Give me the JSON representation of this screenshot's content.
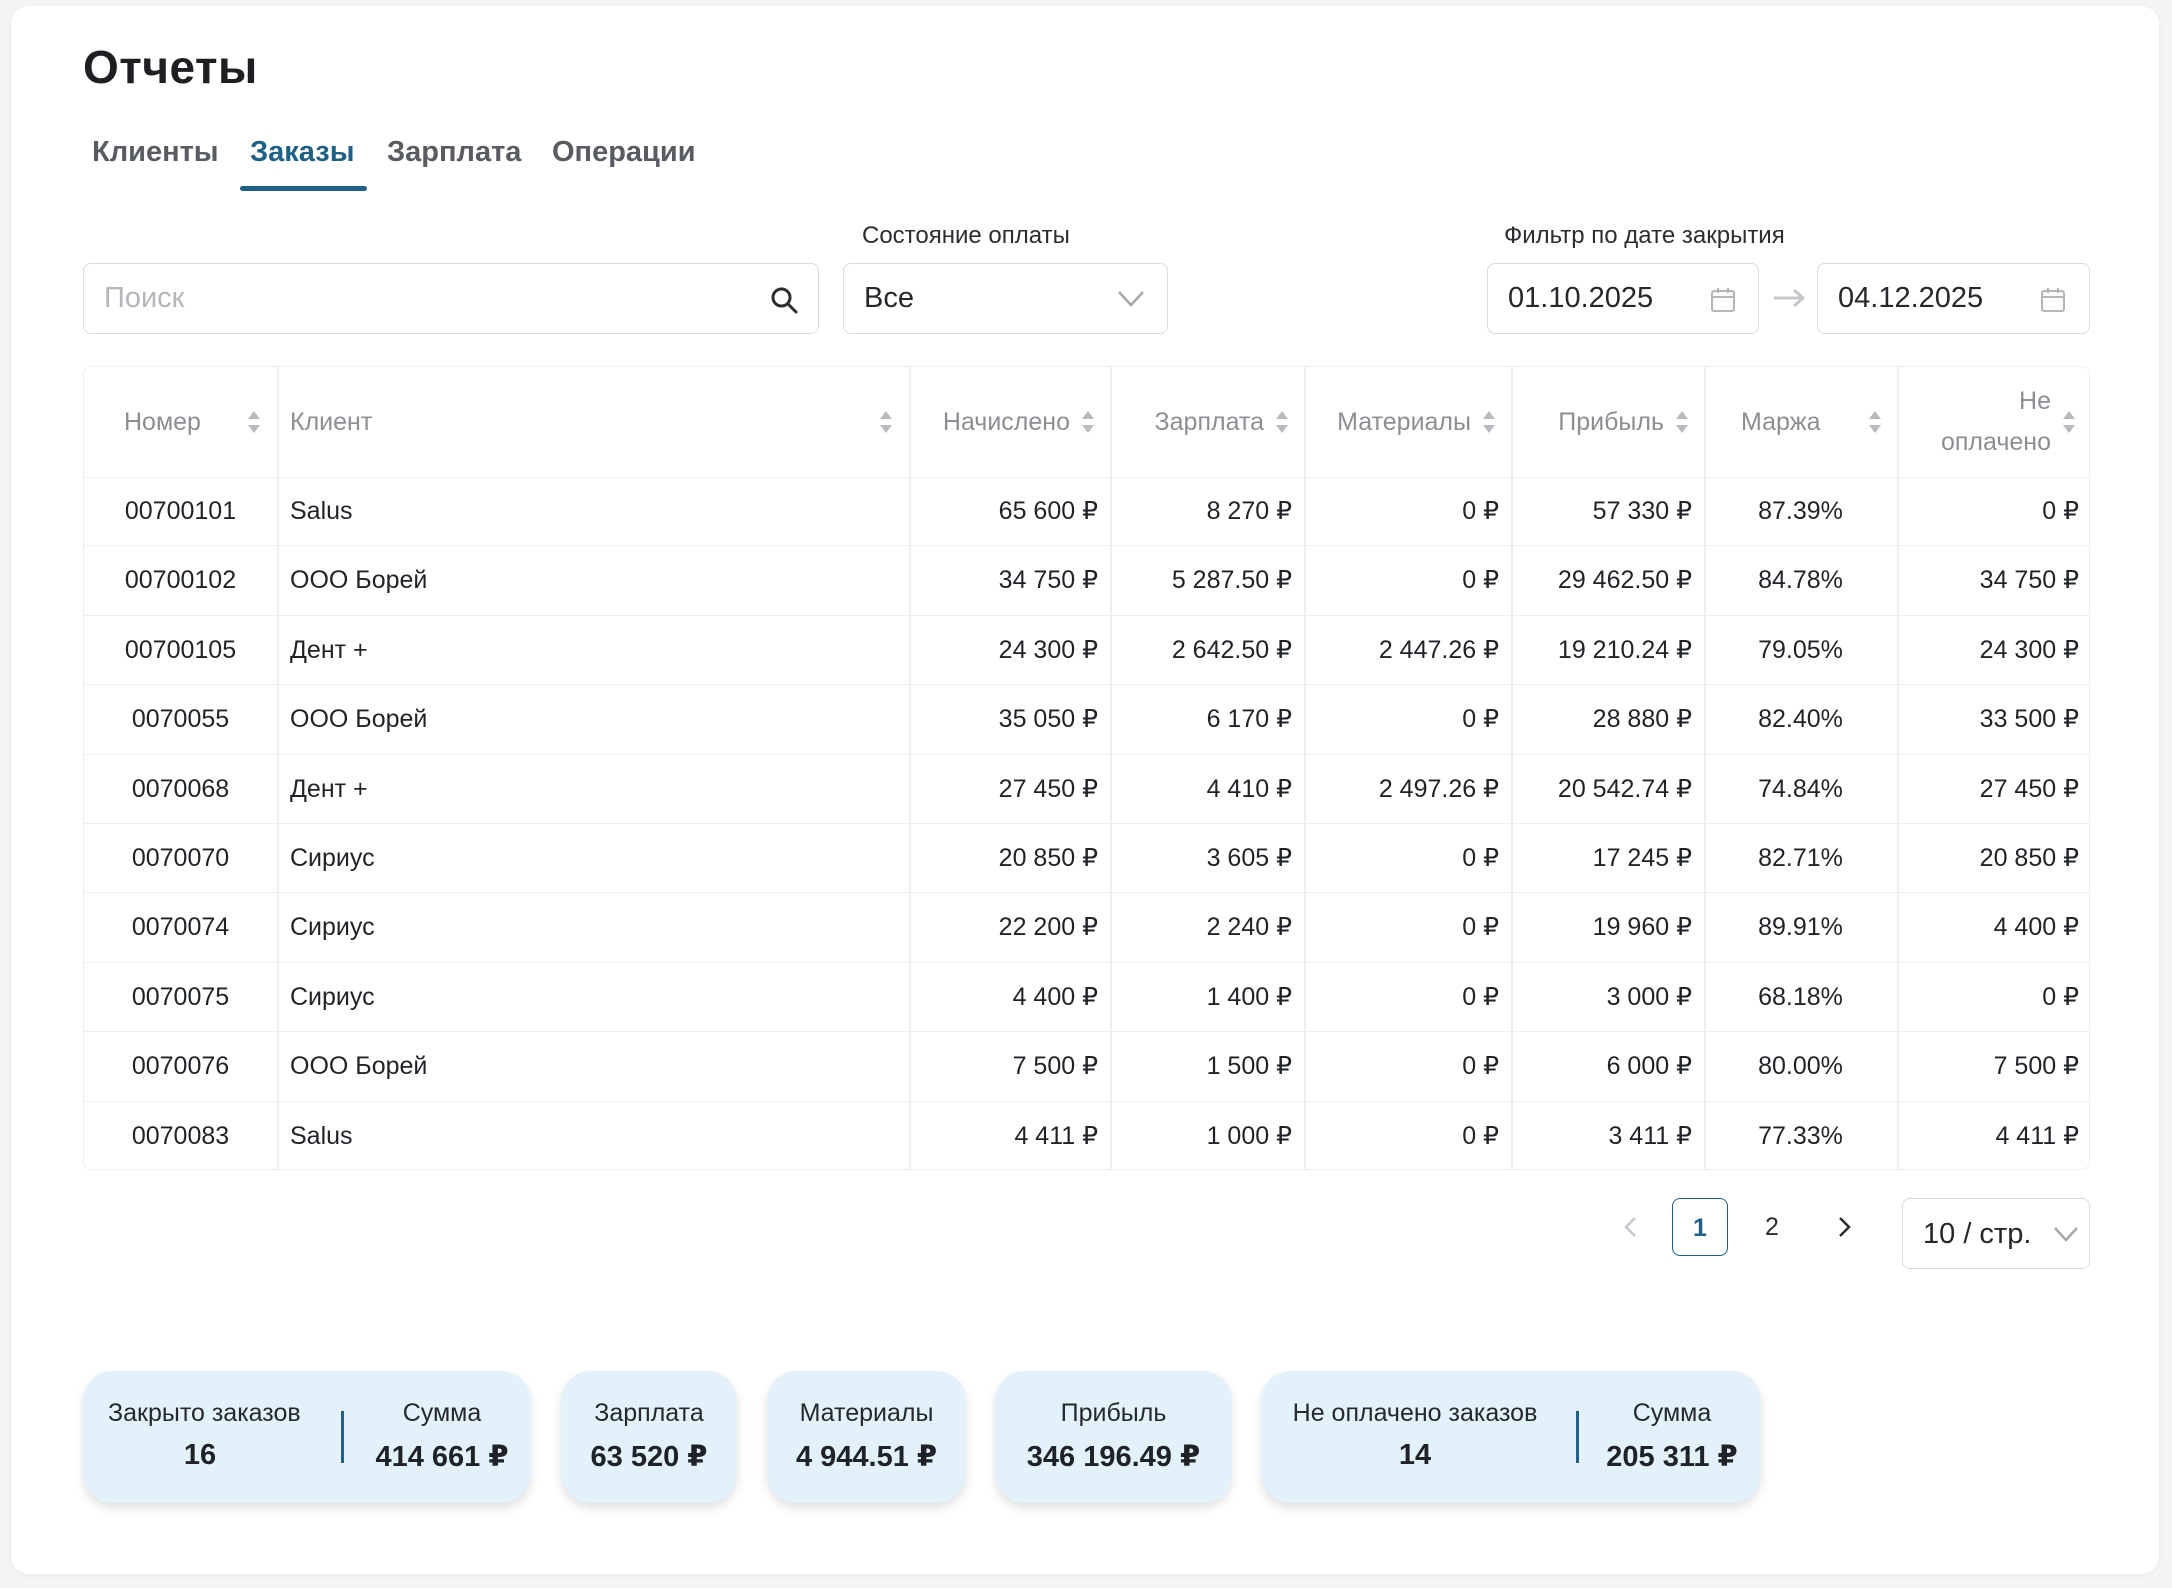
{
  "page": {
    "title": "Отчеты"
  },
  "tabs": [
    {
      "label": "Клиенты",
      "active": false
    },
    {
      "label": "Заказы",
      "active": true
    },
    {
      "label": "Зарплата",
      "active": false
    },
    {
      "label": "Операции",
      "active": false
    }
  ],
  "filters": {
    "search_placeholder": "Поиск",
    "payment_state_label": "Состояние оплаты",
    "payment_state_value": "Все",
    "date_filter_label": "Фильтр по дате закрытия",
    "date_from": "01.10.2025",
    "date_to": "04.12.2025"
  },
  "table": {
    "columns": [
      "Номер",
      "Клиент",
      "Начислено",
      "Зарплата",
      "Материалы",
      "Прибыль",
      "Маржа",
      "Не",
      "оплачено"
    ],
    "rows": [
      [
        "00700101",
        "Salus",
        "65 600 ₽",
        "8 270 ₽",
        "0 ₽",
        "57 330 ₽",
        "87.39%",
        "0 ₽"
      ],
      [
        "00700102",
        "ООО Борей",
        "34 750 ₽",
        "5 287.50 ₽",
        "0 ₽",
        "29 462.50 ₽",
        "84.78%",
        "34 750 ₽"
      ],
      [
        "00700105",
        "Дент +",
        "24 300 ₽",
        "2 642.50 ₽",
        "2 447.26 ₽",
        "19 210.24 ₽",
        "79.05%",
        "24 300 ₽"
      ],
      [
        "0070055",
        "ООО Борей",
        "35 050 ₽",
        "6 170 ₽",
        "0 ₽",
        "28 880 ₽",
        "82.40%",
        "33 500 ₽"
      ],
      [
        "0070068",
        "Дент +",
        "27 450 ₽",
        "4 410 ₽",
        "2 497.26 ₽",
        "20 542.74 ₽",
        "74.84%",
        "27 450 ₽"
      ],
      [
        "0070070",
        "Сириус",
        "20 850 ₽",
        "3 605 ₽",
        "0 ₽",
        "17 245 ₽",
        "82.71%",
        "20 850 ₽"
      ],
      [
        "0070074",
        "Сириус",
        "22 200 ₽",
        "2 240 ₽",
        "0 ₽",
        "19 960 ₽",
        "89.91%",
        "4 400 ₽"
      ],
      [
        "0070075",
        "Сириус",
        "4 400 ₽",
        "1 400 ₽",
        "0 ₽",
        "3 000 ₽",
        "68.18%",
        "0 ₽"
      ],
      [
        "0070076",
        "ООО Борей",
        "7 500 ₽",
        "1 500 ₽",
        "0 ₽",
        "6 000 ₽",
        "80.00%",
        "7 500 ₽"
      ],
      [
        "0070083",
        "Salus",
        "4 411 ₽",
        "1 000 ₽",
        "0 ₽",
        "3 411 ₽",
        "77.33%",
        "4 411 ₽"
      ]
    ]
  },
  "pagination": {
    "pages": [
      "1",
      "2"
    ],
    "current": "1",
    "page_size": "10 / стр."
  },
  "summary": {
    "closed_orders_label": "Закрыто заказов",
    "closed_orders_value": "16",
    "closed_sum_label": "Сумма",
    "closed_sum_value": "414 661 ₽",
    "salary_label": "Зарплата",
    "salary_value": "63 520 ₽",
    "materials_label": "Материалы",
    "materials_value": "4 944.51 ₽",
    "profit_label": "Прибыль",
    "profit_value": "346 196.49 ₽",
    "unpaid_orders_label": "Не оплачено заказов",
    "unpaid_orders_value": "14",
    "unpaid_sum_label": "Сумма",
    "unpaid_sum_value": "205 311 ₽"
  },
  "colors": {
    "accent": "#1e6086",
    "summary_bg": "#e3f1fb",
    "header_text": "#8b8f94",
    "border": "#eceef0"
  },
  "icons": [
    "search-icon",
    "chevron-down-icon",
    "calendar-icon",
    "arrow-right-icon",
    "sort-icon",
    "chevron-left-icon",
    "chevron-right-icon"
  ]
}
